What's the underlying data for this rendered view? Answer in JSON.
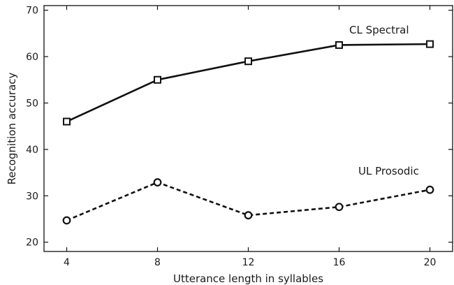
{
  "chart_data": {
    "type": "line",
    "xlabel": "Utterance length in syllables",
    "ylabel": "Recognition accuracy",
    "x": [
      4,
      8,
      12,
      16,
      20
    ],
    "xlim": [
      3,
      21
    ],
    "ylim": [
      18,
      71
    ],
    "xticks": [
      4,
      8,
      12,
      16,
      20
    ],
    "yticks": [
      20,
      30,
      40,
      50,
      60,
      70
    ],
    "grid": false,
    "series": [
      {
        "name": "CL Spectral",
        "values": [
          46.0,
          55.0,
          59.0,
          62.5,
          62.7
        ],
        "line_style": "solid",
        "marker": "square",
        "color": "#111111"
      },
      {
        "name": "UL Prosodic",
        "values": [
          24.7,
          32.9,
          25.8,
          27.6,
          31.3
        ],
        "line_style": "dashed",
        "marker": "circle",
        "color": "#111111"
      }
    ]
  }
}
